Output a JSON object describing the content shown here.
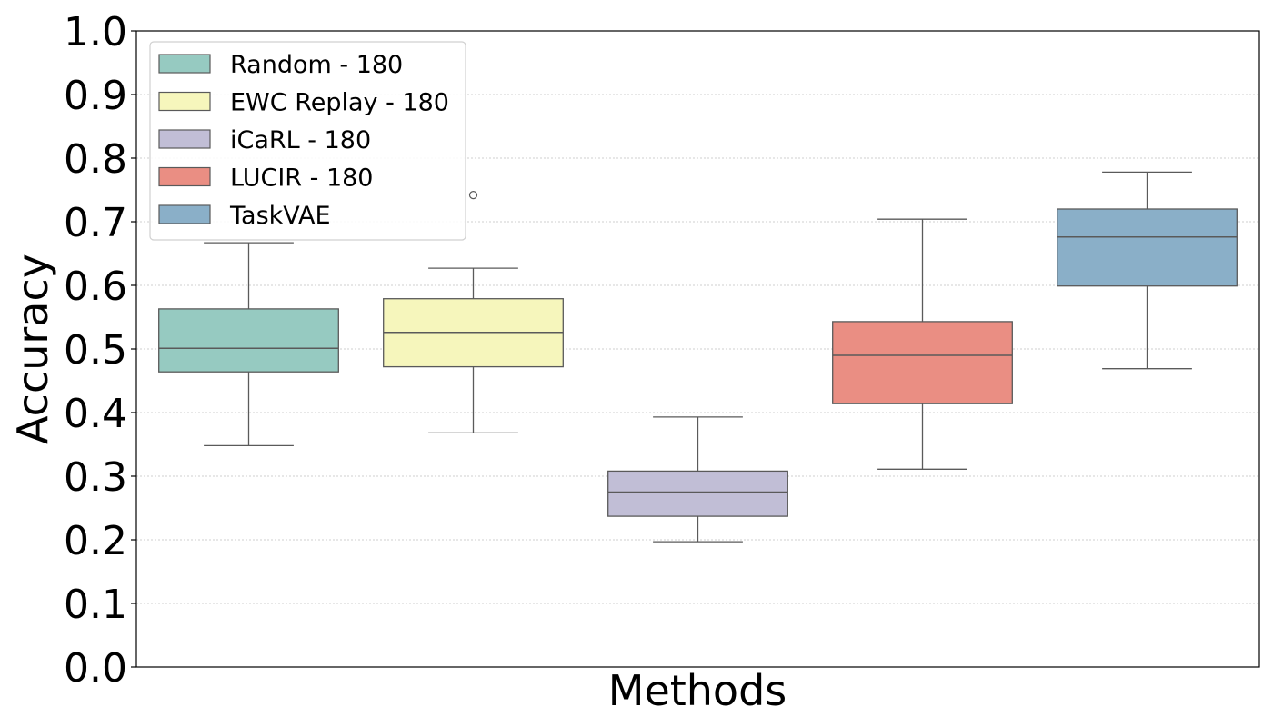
{
  "chart_data": {
    "type": "box",
    "title": "",
    "xlabel": "Methods",
    "ylabel": "Accuracy",
    "ylim": [
      0.0,
      1.0
    ],
    "yticks": [
      "0.0",
      "0.1",
      "0.2",
      "0.3",
      "0.4",
      "0.5",
      "0.6",
      "0.7",
      "0.8",
      "0.9",
      "1.0"
    ],
    "grid": "horizontal dotted",
    "legend_position": "top-left",
    "series": [
      {
        "name": "Random - 180",
        "color": "#96cac1",
        "whisker_low": 0.348,
        "q1": 0.464,
        "median": 0.501,
        "q3": 0.563,
        "whisker_high": 0.667,
        "outliers": []
      },
      {
        "name": "EWC Replay - 180",
        "color": "#f6f6bc",
        "whisker_low": 0.368,
        "q1": 0.472,
        "median": 0.526,
        "q3": 0.579,
        "whisker_high": 0.627,
        "outliers": [
          0.742
        ]
      },
      {
        "name": "iCaRL - 180",
        "color": "#c1bed6",
        "whisker_low": 0.197,
        "q1": 0.237,
        "median": 0.275,
        "q3": 0.308,
        "whisker_high": 0.393,
        "outliers": []
      },
      {
        "name": "LUCIR - 180",
        "color": "#ea8e83",
        "whisker_low": 0.311,
        "q1": 0.414,
        "median": 0.49,
        "q3": 0.543,
        "whisker_high": 0.704,
        "outliers": []
      },
      {
        "name": "TaskVAE",
        "color": "#8aafc8",
        "whisker_low": 0.469,
        "q1": 0.599,
        "median": 0.676,
        "q3": 0.72,
        "whisker_high": 0.778,
        "outliers": []
      }
    ]
  }
}
